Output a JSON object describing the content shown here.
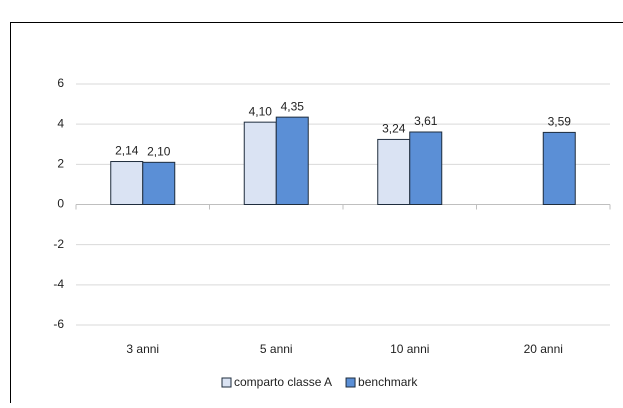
{
  "chart_data": {
    "type": "bar",
    "categories": [
      "3 anni",
      "5 anni",
      "10 anni",
      "20 anni"
    ],
    "series": [
      {
        "name": "comparto classe A",
        "color": "#dae3f3",
        "values": [
          2.14,
          4.1,
          3.24,
          null
        ],
        "value_labels": [
          "2,14",
          "4,10",
          "3,24",
          null
        ]
      },
      {
        "name": "benchmark",
        "color": "#5b8fd6",
        "values": [
          2.1,
          4.35,
          3.61,
          3.59
        ],
        "value_labels": [
          "2,10",
          "4,35",
          "3,61",
          "3,59"
        ]
      }
    ],
    "ylim": [
      -6,
      6
    ],
    "yticks": [
      -6,
      -4,
      -2,
      0,
      2,
      4,
      6
    ],
    "grid": true,
    "legend": "bottom"
  }
}
